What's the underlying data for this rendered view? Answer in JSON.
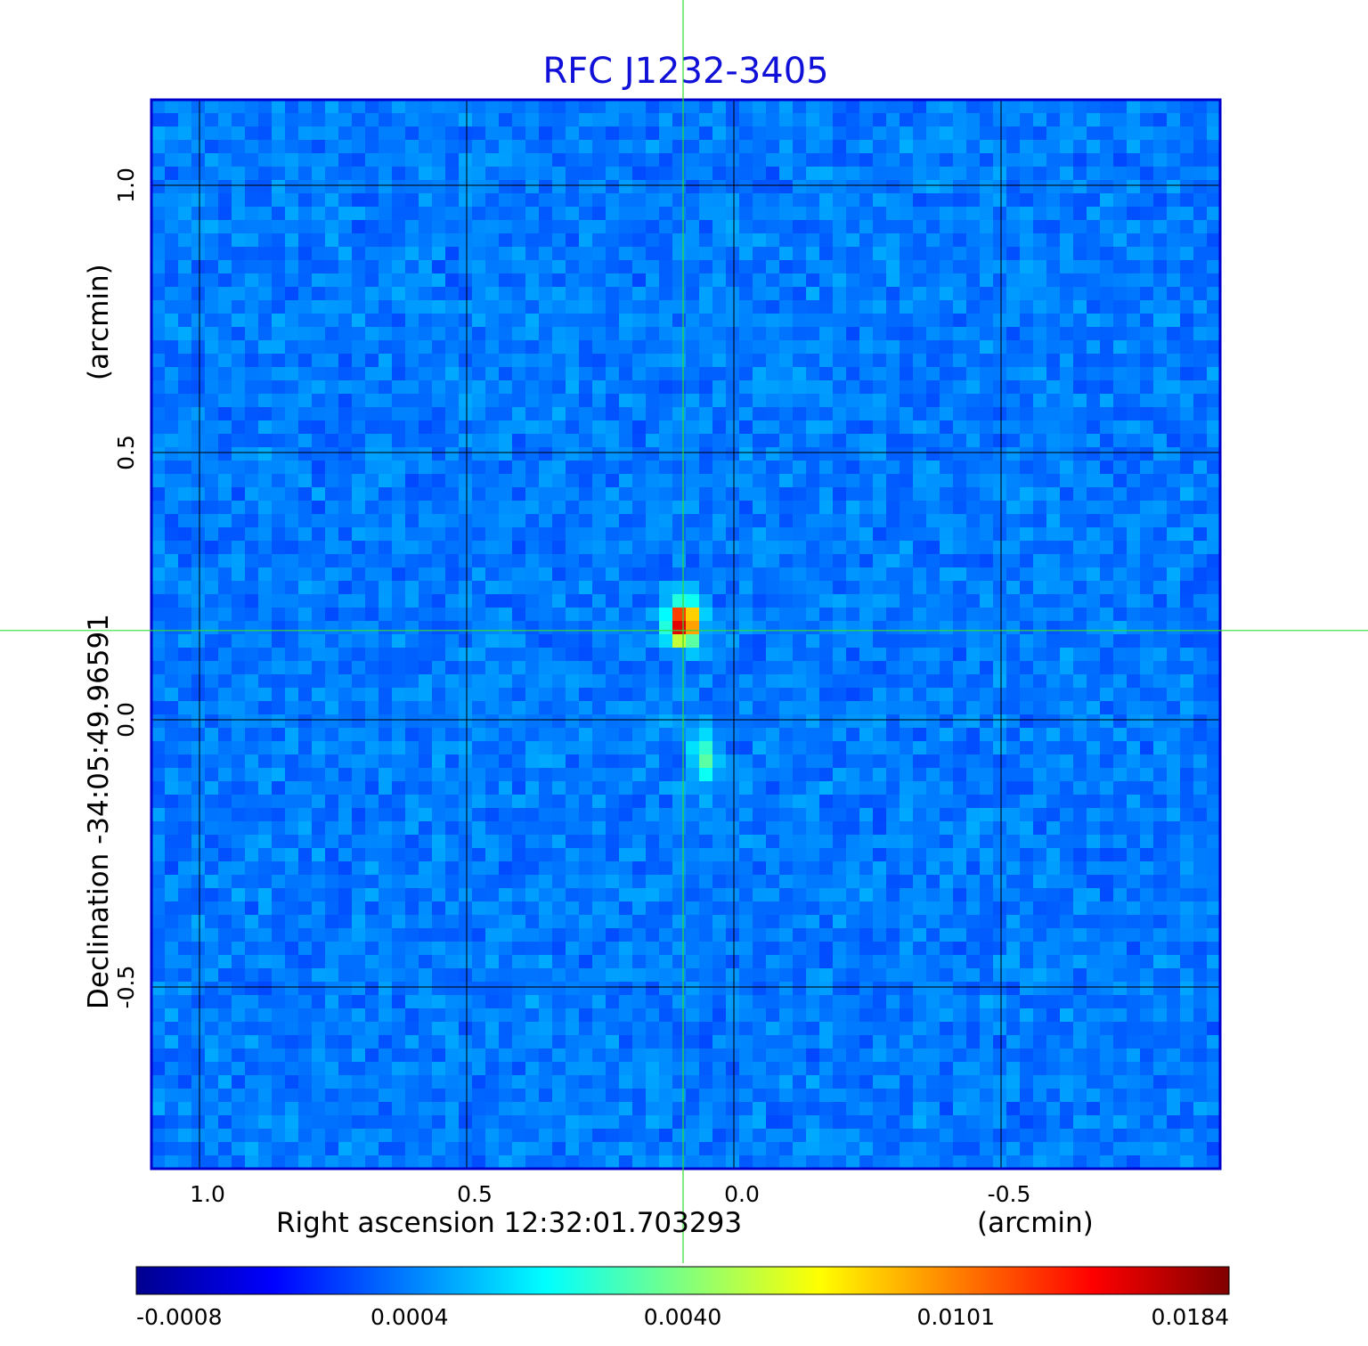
{
  "chart_data": {
    "type": "heatmap",
    "title": "RFC J1232-3405",
    "xlabel": "Right ascension  12:32:01.703293",
    "xunit": "(arcmin)",
    "ylabel": "Declination  -34:05:49.96591",
    "yunit": "(arcmin)",
    "x_ticks": [
      {
        "value": 1.0,
        "label": "1.0"
      },
      {
        "value": 0.5,
        "label": "0.5"
      },
      {
        "value": 0.0,
        "label": "0.0"
      },
      {
        "value": -0.5,
        "label": "-0.5"
      }
    ],
    "y_ticks": [
      {
        "value": 1.0,
        "label": "1.0"
      },
      {
        "value": 0.5,
        "label": "0.5"
      },
      {
        "value": 0.0,
        "label": "0.0"
      },
      {
        "value": -0.5,
        "label": "-0.5"
      }
    ],
    "xlim": [
      1.09,
      -0.91
    ],
    "ylim": [
      -0.84,
      1.16
    ],
    "x_reversed": true,
    "grid": true,
    "crosshair": {
      "x": 0.095,
      "y": 0.167
    },
    "sources": [
      {
        "x": 0.095,
        "y": 0.18,
        "peak": 0.0184
      },
      {
        "x": 0.055,
        "y": -0.07,
        "peak": 0.0035
      }
    ],
    "colorbar": {
      "colormap": "jet",
      "ticks": [
        "-0.0008",
        "0.0004",
        "0.0040",
        "0.0101",
        "0.0184"
      ]
    },
    "colors": {
      "title": "#1010d8",
      "frame": "#0000cc",
      "crosshair": "#33dd33",
      "grid": "#000000"
    }
  }
}
